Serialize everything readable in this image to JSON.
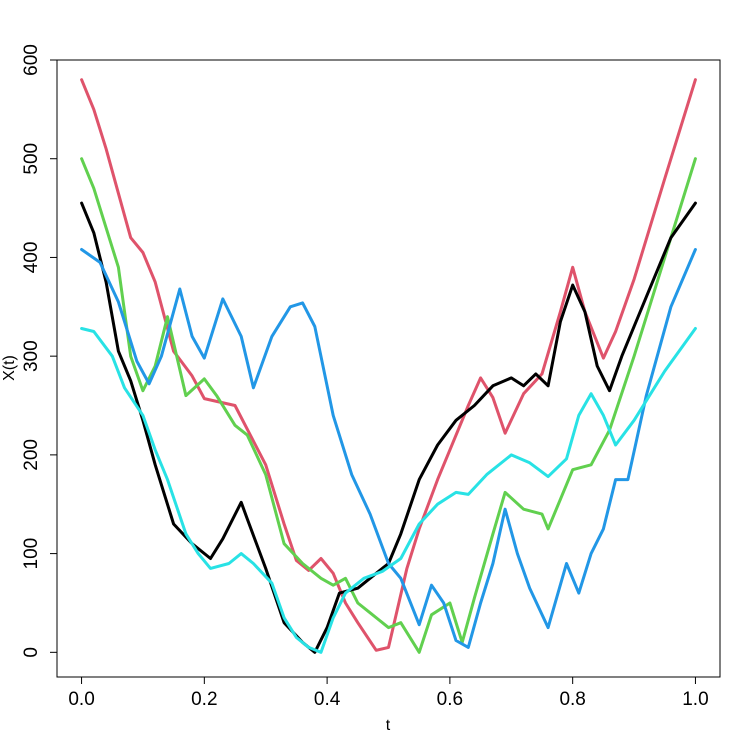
{
  "chart_data": {
    "type": "line",
    "title": "",
    "xlabel": "t",
    "ylabel": "X(t)",
    "xlim": [
      -0.04,
      1.04
    ],
    "ylim": [
      -25,
      600
    ],
    "xticks": [
      0.0,
      0.2,
      0.4,
      0.6,
      0.8,
      1.0
    ],
    "xtick_labels": [
      "0.0",
      "0.2",
      "0.4",
      "0.6",
      "0.8",
      "1.0"
    ],
    "yticks": [
      0,
      100,
      200,
      300,
      400,
      500,
      600
    ],
    "ytick_labels": [
      "0",
      "100",
      "200",
      "300",
      "400",
      "500",
      "600"
    ],
    "grid": false,
    "legend": "none",
    "series": [
      {
        "color": "#DF536B",
        "x": [
          0.0,
          0.02,
          0.04,
          0.06,
          0.08,
          0.1,
          0.12,
          0.15,
          0.18,
          0.2,
          0.25,
          0.3,
          0.33,
          0.35,
          0.37,
          0.39,
          0.41,
          0.43,
          0.45,
          0.48,
          0.5,
          0.53,
          0.55,
          0.58,
          0.6,
          0.63,
          0.65,
          0.67,
          0.69,
          0.72,
          0.75,
          0.78,
          0.8,
          0.82,
          0.85,
          0.87,
          0.9,
          0.95,
          1.0
        ],
        "y": [
          580,
          550,
          510,
          465,
          420,
          405,
          375,
          305,
          280,
          257,
          250,
          190,
          130,
          93,
          83,
          95,
          80,
          50,
          30,
          2,
          5,
          85,
          125,
          175,
          205,
          250,
          278,
          258,
          222,
          262,
          282,
          345,
          390,
          345,
          298,
          325,
          378,
          480,
          580
        ]
      },
      {
        "color": "#61D04F",
        "x": [
          0.0,
          0.02,
          0.04,
          0.06,
          0.08,
          0.1,
          0.12,
          0.14,
          0.17,
          0.2,
          0.22,
          0.25,
          0.27,
          0.3,
          0.33,
          0.36,
          0.39,
          0.41,
          0.43,
          0.45,
          0.47,
          0.5,
          0.52,
          0.55,
          0.57,
          0.6,
          0.62,
          0.64,
          0.67,
          0.69,
          0.72,
          0.75,
          0.76,
          0.78,
          0.8,
          0.83,
          0.86,
          0.9,
          0.95,
          1.0
        ],
        "y": [
          500,
          470,
          430,
          390,
          300,
          265,
          290,
          340,
          260,
          277,
          260,
          230,
          220,
          180,
          110,
          90,
          75,
          68,
          75,
          50,
          40,
          25,
          30,
          0,
          38,
          50,
          10,
          55,
          120,
          162,
          145,
          140,
          125,
          155,
          185,
          190,
          225,
          300,
          400,
          500
        ]
      },
      {
        "color": "#000000",
        "x": [
          0.0,
          0.02,
          0.04,
          0.06,
          0.08,
          0.1,
          0.12,
          0.15,
          0.18,
          0.21,
          0.23,
          0.26,
          0.27,
          0.3,
          0.33,
          0.36,
          0.38,
          0.4,
          0.42,
          0.45,
          0.48,
          0.5,
          0.52,
          0.55,
          0.58,
          0.61,
          0.64,
          0.67,
          0.7,
          0.72,
          0.74,
          0.76,
          0.78,
          0.8,
          0.82,
          0.84,
          0.86,
          0.88,
          0.92,
          0.96,
          1.0
        ],
        "y": [
          455,
          425,
          375,
          305,
          275,
          235,
          190,
          130,
          110,
          95,
          115,
          152,
          135,
          85,
          30,
          10,
          0,
          25,
          60,
          65,
          80,
          90,
          120,
          175,
          210,
          235,
          250,
          270,
          278,
          270,
          282,
          270,
          335,
          372,
          345,
          290,
          265,
          300,
          360,
          420,
          455
        ]
      },
      {
        "color": "#2297E6",
        "x": [
          0.0,
          0.03,
          0.06,
          0.09,
          0.11,
          0.13,
          0.16,
          0.18,
          0.2,
          0.23,
          0.26,
          0.28,
          0.31,
          0.34,
          0.36,
          0.38,
          0.41,
          0.44,
          0.47,
          0.5,
          0.52,
          0.55,
          0.57,
          0.59,
          0.61,
          0.63,
          0.65,
          0.67,
          0.69,
          0.71,
          0.73,
          0.76,
          0.79,
          0.81,
          0.83,
          0.85,
          0.87,
          0.89,
          0.92,
          0.96,
          1.0
        ],
        "y": [
          408,
          395,
          355,
          295,
          272,
          300,
          368,
          320,
          298,
          358,
          320,
          268,
          320,
          350,
          354,
          330,
          240,
          180,
          140,
          90,
          75,
          28,
          68,
          50,
          12,
          5,
          50,
          90,
          145,
          100,
          65,
          25,
          90,
          60,
          100,
          125,
          175,
          175,
          260,
          350,
          408
        ]
      },
      {
        "color": "#28E2E5",
        "x": [
          0.0,
          0.02,
          0.05,
          0.07,
          0.1,
          0.12,
          0.14,
          0.17,
          0.19,
          0.21,
          0.24,
          0.26,
          0.28,
          0.31,
          0.33,
          0.35,
          0.37,
          0.39,
          0.41,
          0.43,
          0.46,
          0.49,
          0.52,
          0.55,
          0.58,
          0.61,
          0.63,
          0.66,
          0.7,
          0.73,
          0.76,
          0.79,
          0.81,
          0.83,
          0.85,
          0.87,
          0.9,
          0.95,
          1.0
        ],
        "y": [
          328,
          325,
          300,
          268,
          240,
          205,
          175,
          120,
          100,
          85,
          90,
          100,
          90,
          70,
          35,
          15,
          5,
          0,
          35,
          60,
          75,
          82,
          95,
          130,
          150,
          162,
          160,
          180,
          200,
          192,
          178,
          196,
          240,
          262,
          240,
          210,
          235,
          285,
          328
        ]
      }
    ]
  }
}
